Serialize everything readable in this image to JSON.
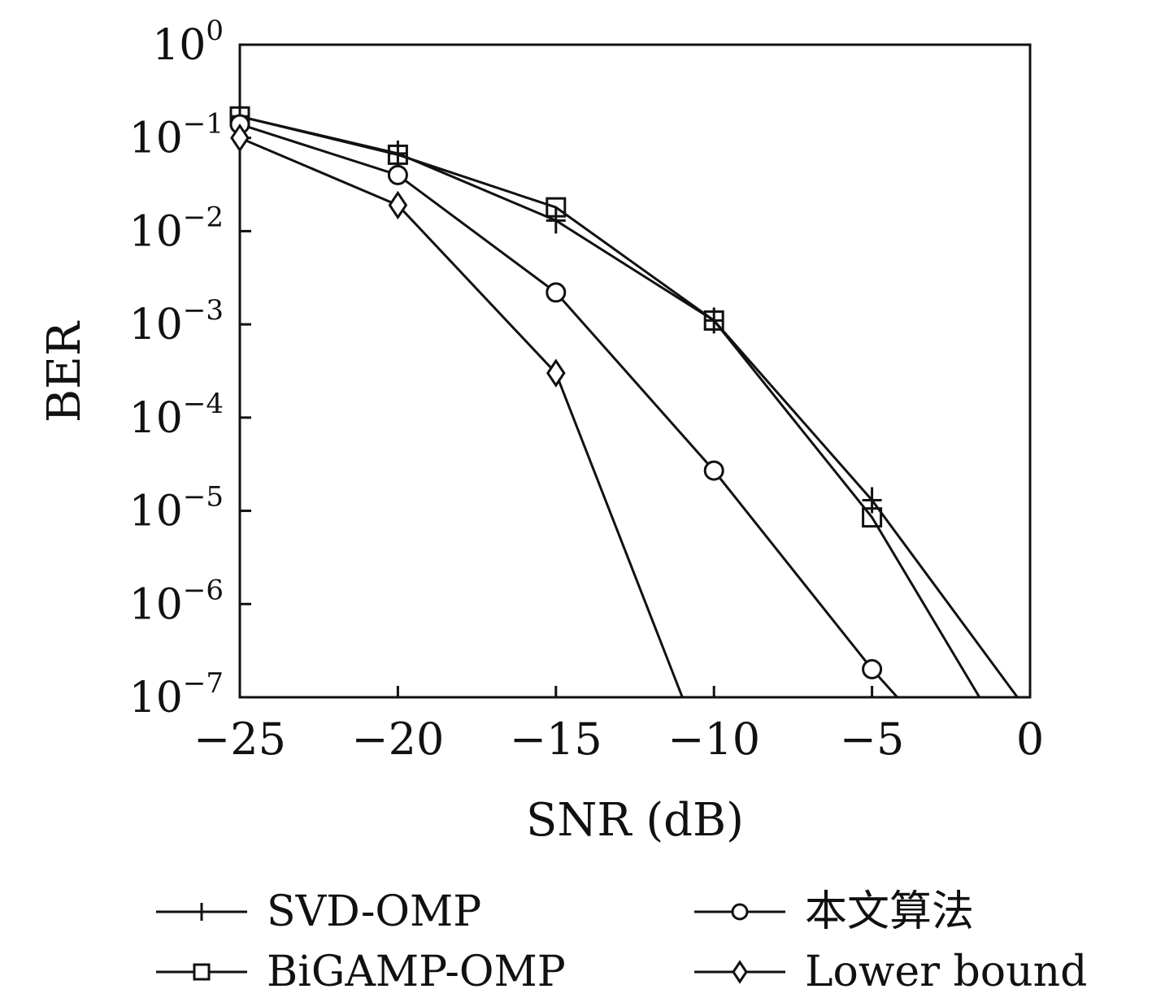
{
  "chart_data": {
    "type": "line",
    "xlabel": "SNR (dB)",
    "ylabel": "BER",
    "y_scale": "log",
    "xlim": [
      -25,
      0
    ],
    "ylim": [
      1e-07,
      1
    ],
    "x_ticks": [
      {
        "value": -25,
        "label": "−25"
      },
      {
        "value": -20,
        "label": "−20"
      },
      {
        "value": -15,
        "label": "−15"
      },
      {
        "value": -10,
        "label": "−10"
      },
      {
        "value": -5,
        "label": "−5"
      },
      {
        "value": 0,
        "label": "0"
      }
    ],
    "y_ticks": [
      {
        "value": 1,
        "base": "10",
        "exp": "0"
      },
      {
        "value": 0.1,
        "base": "10",
        "exp": "−1"
      },
      {
        "value": 0.01,
        "base": "10",
        "exp": "−2"
      },
      {
        "value": 0.001,
        "base": "10",
        "exp": "−3"
      },
      {
        "value": 0.0001,
        "base": "10",
        "exp": "−4"
      },
      {
        "value": 1e-05,
        "base": "10",
        "exp": "−5"
      },
      {
        "value": 1e-06,
        "base": "10",
        "exp": "−6"
      },
      {
        "value": 1e-07,
        "base": "10",
        "exp": "−7"
      }
    ],
    "grid": false,
    "legend_position": "bottom",
    "series": [
      {
        "name": "SVD-OMP",
        "marker": "plus",
        "color": "#111111",
        "points": [
          [
            -25,
            0.17
          ],
          [
            -20,
            0.068
          ],
          [
            -15,
            0.013
          ],
          [
            -10,
            0.0011
          ],
          [
            -5,
            1.3e-05
          ],
          [
            -0.4,
            1e-07
          ]
        ]
      },
      {
        "name": "BiGAMP-OMP",
        "marker": "square",
        "color": "#111111",
        "points": [
          [
            -25,
            0.17
          ],
          [
            -20,
            0.066
          ],
          [
            -15,
            0.018
          ],
          [
            -10,
            0.0011
          ],
          [
            -5,
            8.5e-06
          ],
          [
            -1.6,
            1e-07
          ]
        ]
      },
      {
        "name": "本文算法",
        "marker": "circle",
        "color": "#111111",
        "points": [
          [
            -25,
            0.14
          ],
          [
            -20,
            0.04
          ],
          [
            -15,
            0.0022
          ],
          [
            -10,
            2.7e-05
          ],
          [
            -5,
            2e-07
          ],
          [
            -4.2,
            1e-07
          ]
        ]
      },
      {
        "name": "Lower bound",
        "marker": "diamond",
        "color": "#111111",
        "points": [
          [
            -25,
            0.1
          ],
          [
            -20,
            0.019
          ],
          [
            -15,
            0.0003
          ],
          [
            -11.0,
            1e-07
          ]
        ]
      }
    ]
  }
}
